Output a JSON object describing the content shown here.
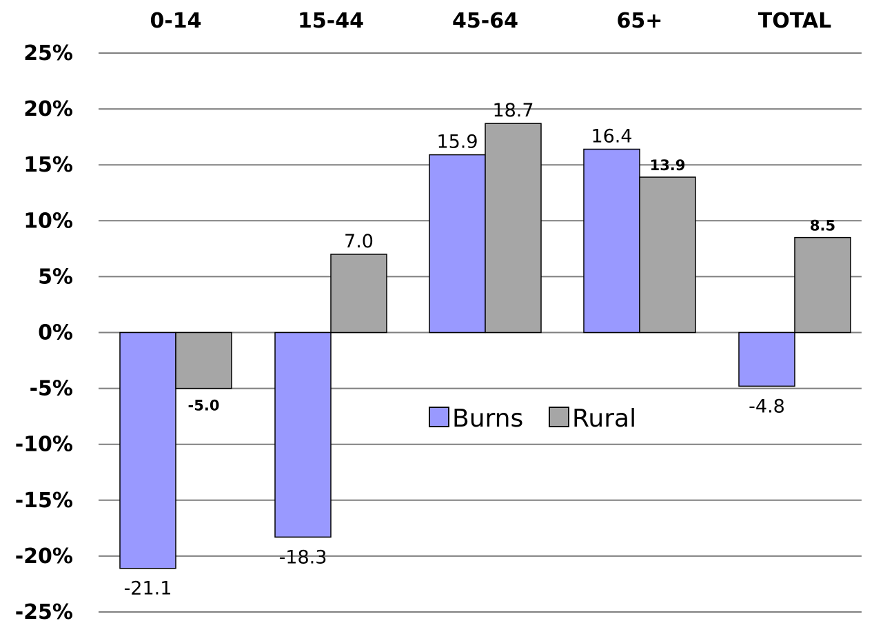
{
  "chart_data": {
    "type": "bar",
    "categories": [
      "0-14",
      "15-44",
      "45-64",
      "65+",
      "TOTAL"
    ],
    "series": [
      {
        "name": "Burns",
        "values": [
          -21.1,
          -18.3,
          15.9,
          16.4,
          -4.8
        ],
        "color": "#9999ff"
      },
      {
        "name": "Rural",
        "values": [
          -5.0,
          7.0,
          18.7,
          13.9,
          8.5
        ],
        "color": "#a6a6a6"
      }
    ],
    "data_labels": {
      "Burns": [
        "-21.1",
        "-18.3",
        "15.9",
        "16.4",
        "-4.8"
      ],
      "Rural": [
        "-5.0",
        "7.0",
        "18.7",
        "13.9",
        "8.5"
      ]
    },
    "y_ticks": [
      "25%",
      "20%",
      "15%",
      "10%",
      "5%",
      "0%",
      "-5%",
      "-10%",
      "-15%",
      "-20%",
      "-25%"
    ],
    "ylim": [
      -25,
      25
    ],
    "grid": true,
    "legend": "center",
    "category_axis_position": "top"
  }
}
